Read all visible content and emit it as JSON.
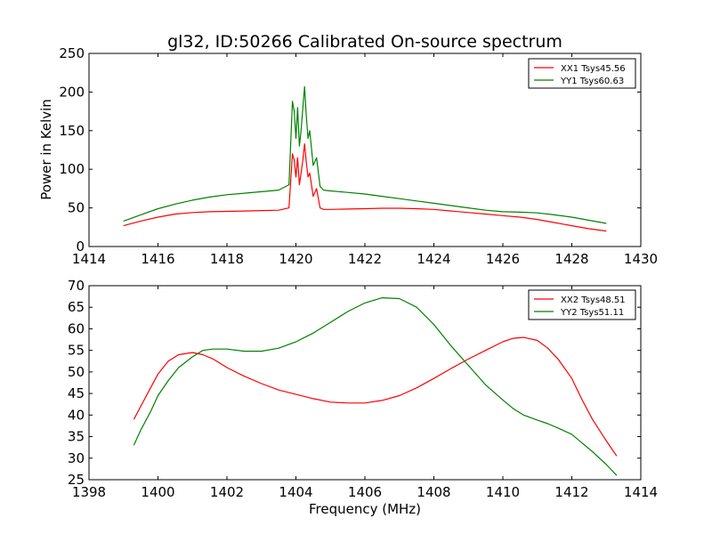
{
  "chart_data": [
    {
      "type": "line",
      "title": "gl32, ID:50266 Calibrated On-source spectrum",
      "xlabel": "",
      "ylabel": "Power in Kelvin",
      "xlim": [
        1414,
        1430
      ],
      "ylim": [
        0,
        250
      ],
      "xticks": [
        1414,
        1416,
        1418,
        1420,
        1422,
        1424,
        1426,
        1428,
        1430
      ],
      "yticks": [
        0,
        50,
        100,
        150,
        200,
        250
      ],
      "legend_position": "upper right",
      "series": [
        {
          "name": "XX1 Tsys45.56",
          "color": "#ff0000",
          "x": [
            1415.0,
            1415.5,
            1416.0,
            1416.5,
            1417.0,
            1417.5,
            1418.0,
            1418.5,
            1419.0,
            1419.5,
            1419.8,
            1419.9,
            1419.95,
            1420.0,
            1420.05,
            1420.1,
            1420.15,
            1420.2,
            1420.25,
            1420.3,
            1420.35,
            1420.4,
            1420.5,
            1420.6,
            1420.7,
            1420.8,
            1421.0,
            1421.5,
            1422.0,
            1422.5,
            1423.0,
            1423.5,
            1424.0,
            1424.5,
            1425.0,
            1425.5,
            1426.0,
            1426.5,
            1427.0,
            1427.5,
            1428.0,
            1428.5,
            1429.0
          ],
          "values": [
            27,
            33,
            38,
            42,
            44,
            45,
            45.5,
            46,
            46.5,
            47,
            50,
            120,
            112,
            90,
            115,
            80,
            95,
            112,
            133,
            110,
            90,
            95,
            65,
            75,
            50,
            48,
            48,
            48.5,
            49,
            49.5,
            49.5,
            49,
            48,
            46,
            44,
            42,
            40,
            38,
            35,
            31,
            27,
            23,
            20
          ]
        },
        {
          "name": "YY1 Tsys60.63",
          "color": "#008000",
          "x": [
            1415.0,
            1415.5,
            1416.0,
            1416.5,
            1417.0,
            1417.5,
            1418.0,
            1418.5,
            1419.0,
            1419.5,
            1419.8,
            1419.9,
            1419.95,
            1420.0,
            1420.05,
            1420.1,
            1420.15,
            1420.2,
            1420.25,
            1420.3,
            1420.35,
            1420.4,
            1420.5,
            1420.6,
            1420.7,
            1420.8,
            1421.0,
            1421.5,
            1422.0,
            1422.5,
            1423.0,
            1423.5,
            1424.0,
            1424.5,
            1425.0,
            1425.5,
            1426.0,
            1426.5,
            1427.0,
            1427.5,
            1428.0,
            1428.5,
            1429.0
          ],
          "values": [
            33,
            41,
            49,
            55,
            60,
            64,
            67,
            69,
            71,
            73,
            80,
            188,
            175,
            140,
            180,
            130,
            150,
            180,
            207,
            170,
            140,
            150,
            105,
            115,
            78,
            73,
            72,
            70,
            68,
            65,
            62,
            59,
            56,
            53,
            50,
            47,
            45,
            44.5,
            43.5,
            41,
            38,
            34,
            30
          ]
        }
      ]
    },
    {
      "type": "line",
      "title": "",
      "xlabel": "Frequency (MHz)",
      "ylabel": "",
      "xlim": [
        1398,
        1414
      ],
      "ylim": [
        25,
        70
      ],
      "xticks": [
        1398,
        1400,
        1402,
        1404,
        1406,
        1408,
        1410,
        1412,
        1414
      ],
      "yticks": [
        25,
        30,
        35,
        40,
        45,
        50,
        55,
        60,
        65,
        70
      ],
      "legend_position": "upper right",
      "series": [
        {
          "name": "XX2 Tsys48.51",
          "color": "#ff0000",
          "x": [
            1399.3,
            1399.5,
            1399.8,
            1400.0,
            1400.3,
            1400.6,
            1401.0,
            1401.3,
            1401.6,
            1402.0,
            1402.5,
            1403.0,
            1403.5,
            1404.0,
            1404.5,
            1405.0,
            1405.5,
            1406.0,
            1406.5,
            1407.0,
            1407.5,
            1408.0,
            1408.5,
            1409.0,
            1409.5,
            1410.0,
            1410.3,
            1410.6,
            1411.0,
            1411.3,
            1411.6,
            1412.0,
            1412.3,
            1412.6,
            1413.0,
            1413.3
          ],
          "values": [
            39,
            42,
            46.5,
            49.5,
            52.5,
            54,
            54.5,
            54,
            53,
            51,
            49,
            47.3,
            45.8,
            44.8,
            43.8,
            43,
            42.8,
            42.8,
            43.4,
            44.5,
            46.3,
            48.5,
            50.8,
            53,
            55,
            57,
            57.8,
            58,
            57.3,
            55.5,
            53,
            48.5,
            43.5,
            39,
            34,
            30.5
          ]
        },
        {
          "name": "YY2 Tsys51.11",
          "color": "#008000",
          "x": [
            1399.3,
            1399.5,
            1399.8,
            1400.0,
            1400.3,
            1400.6,
            1401.0,
            1401.3,
            1401.6,
            1402.0,
            1402.5,
            1403.0,
            1403.5,
            1404.0,
            1404.5,
            1405.0,
            1405.5,
            1406.0,
            1406.5,
            1407.0,
            1407.5,
            1408.0,
            1408.5,
            1409.0,
            1409.5,
            1410.0,
            1410.3,
            1410.6,
            1411.0,
            1411.3,
            1411.6,
            1412.0,
            1412.3,
            1412.6,
            1413.0,
            1413.3
          ],
          "values": [
            33,
            36.5,
            41,
            44.5,
            48,
            51,
            53.5,
            55,
            55.3,
            55.3,
            54.8,
            54.8,
            55.5,
            57,
            59,
            61.5,
            64,
            66,
            67.2,
            67,
            65,
            61,
            56,
            51.5,
            47,
            43.5,
            41.5,
            40,
            38.8,
            38,
            37,
            35.5,
            33.5,
            31.5,
            28.5,
            26
          ]
        }
      ]
    }
  ]
}
